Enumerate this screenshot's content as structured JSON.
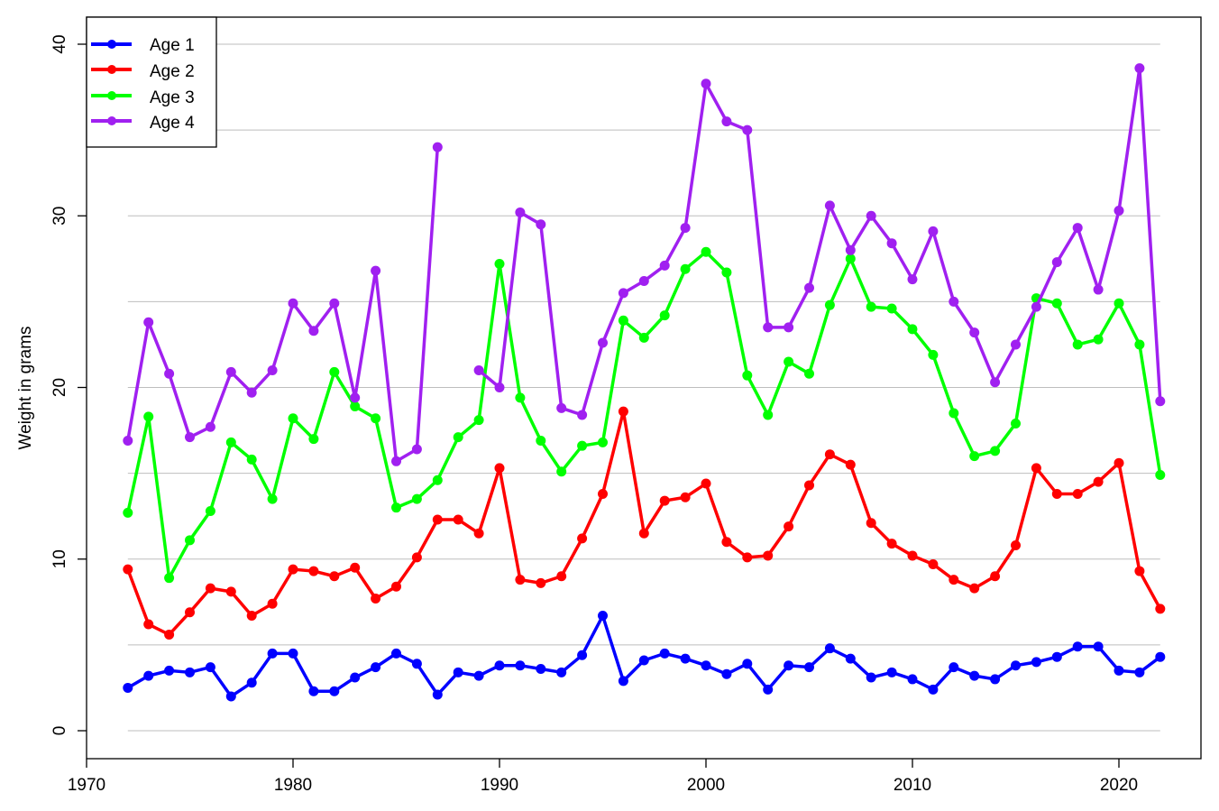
{
  "chart_data": {
    "type": "line",
    "title": "",
    "xlabel": "",
    "ylabel": "Weight in grams",
    "xlim": [
      1970,
      2024
    ],
    "ylim": [
      -1.6,
      41
    ],
    "xticks": [
      1970,
      1980,
      1990,
      2000,
      2010,
      2020
    ],
    "yticks": [
      0,
      10,
      20,
      30,
      40
    ],
    "grid": {
      "horizontal": true,
      "minor_step": 5,
      "vertical": false
    },
    "legend_position": "top-left",
    "x": [
      1972,
      1973,
      1974,
      1975,
      1976,
      1977,
      1978,
      1979,
      1980,
      1981,
      1982,
      1983,
      1984,
      1985,
      1986,
      1987,
      1988,
      1989,
      1990,
      1991,
      1992,
      1993,
      1994,
      1995,
      1996,
      1997,
      1998,
      1999,
      2000,
      2001,
      2002,
      2003,
      2004,
      2005,
      2006,
      2007,
      2008,
      2009,
      2010,
      2011,
      2012,
      2013,
      2014,
      2015,
      2016,
      2017,
      2018,
      2019,
      2020,
      2021,
      2022
    ],
    "series": [
      {
        "name": "Age 1",
        "color": "#0000ff",
        "values": [
          2.5,
          3.2,
          3.5,
          3.4,
          3.7,
          2.0,
          2.8,
          4.5,
          4.5,
          2.3,
          2.3,
          3.1,
          3.7,
          4.5,
          3.9,
          2.1,
          3.4,
          3.2,
          3.8,
          3.8,
          3.6,
          3.4,
          4.4,
          6.7,
          2.9,
          4.1,
          4.5,
          4.2,
          3.8,
          3.3,
          3.9,
          2.4,
          3.8,
          3.7,
          4.8,
          4.2,
          3.1,
          3.4,
          3.0,
          2.4,
          3.7,
          3.2,
          3.0,
          3.8,
          4.0,
          4.3,
          4.9,
          4.9,
          3.5,
          3.4,
          4.3
        ]
      },
      {
        "name": "Age 2",
        "color": "#ff0000",
        "values": [
          9.4,
          6.2,
          5.6,
          6.9,
          8.3,
          8.1,
          6.7,
          7.4,
          9.4,
          9.3,
          9.0,
          9.5,
          7.7,
          8.4,
          10.1,
          12.3,
          12.3,
          11.5,
          15.3,
          8.8,
          8.6,
          9.0,
          11.2,
          13.8,
          18.6,
          11.5,
          13.4,
          13.6,
          14.4,
          11.0,
          10.1,
          10.2,
          11.9,
          14.3,
          16.1,
          15.5,
          12.1,
          10.9,
          10.2,
          9.7,
          8.8,
          8.3,
          9.0,
          10.8,
          15.3,
          13.8,
          13.8,
          14.5,
          15.6,
          9.3,
          7.1
        ]
      },
      {
        "name": "Age 3",
        "color": "#00ff00",
        "values": [
          12.7,
          18.3,
          8.9,
          11.1,
          12.8,
          16.8,
          15.8,
          13.5,
          18.2,
          17.0,
          20.9,
          18.9,
          18.2,
          13.0,
          13.5,
          14.6,
          17.1,
          18.1,
          27.2,
          19.4,
          16.9,
          15.1,
          16.6,
          16.8,
          23.9,
          22.9,
          24.2,
          26.9,
          27.9,
          26.7,
          20.7,
          18.4,
          21.5,
          20.8,
          24.8,
          27.5,
          24.7,
          24.6,
          23.4,
          21.9,
          18.5,
          16.0,
          16.3,
          17.9,
          25.2,
          24.9,
          22.5,
          22.8,
          24.9,
          22.5,
          14.9
        ]
      },
      {
        "name": "Age 4",
        "color": "#a020f0",
        "values": [
          16.9,
          23.8,
          20.8,
          17.1,
          17.7,
          20.9,
          19.7,
          21.0,
          24.9,
          23.3,
          24.9,
          19.4,
          26.8,
          15.7,
          16.4,
          34.0,
          null,
          21.0,
          20.0,
          30.2,
          29.5,
          18.8,
          18.4,
          22.6,
          25.5,
          26.2,
          27.1,
          29.3,
          37.7,
          35.5,
          35.0,
          23.5,
          23.5,
          25.8,
          30.6,
          28.0,
          30.0,
          28.4,
          26.3,
          29.1,
          25.0,
          23.2,
          20.3,
          22.5,
          24.7,
          27.3,
          29.3,
          25.7,
          30.3,
          38.6,
          19.2
        ]
      }
    ]
  },
  "legend": {
    "items": [
      {
        "label": "Age 1",
        "color": "#0000ff"
      },
      {
        "label": "Age 2",
        "color": "#ff0000"
      },
      {
        "label": "Age 3",
        "color": "#00ff00"
      },
      {
        "label": "Age 4",
        "color": "#a020f0"
      }
    ]
  },
  "axes": {
    "ylabel": "Weight in grams"
  }
}
